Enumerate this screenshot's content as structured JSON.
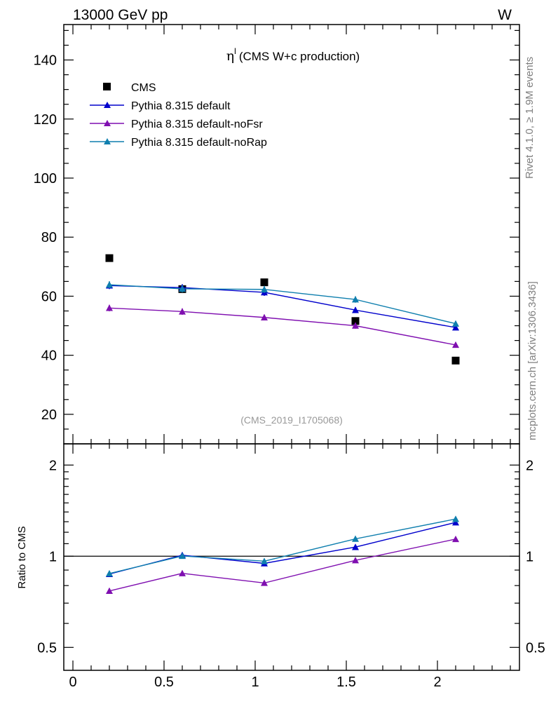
{
  "header": {
    "energy_label": "13000 GeV pp",
    "process_label": "W"
  },
  "side_labels": {
    "rivet": "Rivet 4.1.0, ≥ 1.9M events",
    "mcplots": "mcplots.cern.ch [arXiv:1306.3436]"
  },
  "chart_data": [
    {
      "type": "line",
      "panel": "main",
      "title_symbol": "η",
      "title_superscript": "l",
      "title_text": "(CMS W+c production)",
      "watermark": "(CMS_2019_I1705068)",
      "xlim": [
        -0.05,
        2.45
      ],
      "ylim": [
        10,
        152
      ],
      "yticks": [
        20,
        40,
        60,
        80,
        100,
        120,
        140
      ],
      "ytick_labels": [
        "20",
        "40",
        "60",
        "80",
        "100",
        "120",
        "140"
      ],
      "legend_position": "top-left",
      "x": [
        0.2,
        0.6,
        1.05,
        1.55,
        2.1
      ],
      "series": [
        {
          "name": "CMS",
          "kind": "data",
          "color": "#000000",
          "values": [
            72.9,
            62.4,
            64.7,
            51.6,
            38.2
          ]
        },
        {
          "name": "Pythia 8.315 default",
          "kind": "mc",
          "color": "#0000cc",
          "values": [
            63.6,
            62.9,
            61.3,
            55.3,
            49.4
          ],
          "errors": [
            1.2,
            1.2,
            1.2,
            1.0,
            0.9
          ]
        },
        {
          "name": "Pythia 8.315 default-noFsr",
          "kind": "mc",
          "color": "#7f0fb0",
          "values": [
            56.0,
            54.8,
            52.8,
            50.0,
            43.5
          ],
          "errors": [
            1.1,
            1.1,
            1.0,
            1.0,
            0.9
          ]
        },
        {
          "name": "Pythia 8.315 default-noRap",
          "kind": "mc",
          "color": "#0f7fae",
          "values": [
            63.9,
            62.5,
            62.3,
            58.9,
            50.7
          ],
          "errors": [
            1.2,
            1.2,
            1.2,
            1.1,
            0.9
          ]
        }
      ]
    },
    {
      "type": "line",
      "panel": "ratio",
      "ylabel": "Ratio to CMS",
      "yscale": "log",
      "ylim": [
        0.42,
        2.35
      ],
      "yticks": [
        0.5,
        1,
        2
      ],
      "ytick_labels": [
        "0.5",
        "1",
        "2"
      ],
      "reference_line": 1,
      "xticks": [
        0,
        0.5,
        1,
        1.5,
        2
      ],
      "xtick_labels": [
        "0",
        "0.5",
        "1",
        "1.5",
        "2"
      ],
      "x": [
        0.2,
        0.6,
        1.05,
        1.55,
        2.1
      ],
      "series": [
        {
          "name": "Pythia 8.315 default",
          "color": "#0000cc",
          "values": [
            0.873,
            1.008,
            0.947,
            1.072,
            1.293
          ],
          "errors": [
            0.017,
            0.019,
            0.018,
            0.019,
            0.022
          ]
        },
        {
          "name": "Pythia 8.315 default-noFsr",
          "color": "#7f0fb0",
          "values": [
            0.768,
            0.878,
            0.816,
            0.969,
            1.139
          ],
          "errors": [
            0.016,
            0.018,
            0.016,
            0.018,
            0.02
          ]
        },
        {
          "name": "Pythia 8.315 default-noRap",
          "color": "#0f7fae",
          "values": [
            0.877,
            1.002,
            0.963,
            1.141,
            1.327
          ],
          "errors": [
            0.017,
            0.019,
            0.018,
            0.02,
            0.022
          ]
        }
      ]
    }
  ]
}
